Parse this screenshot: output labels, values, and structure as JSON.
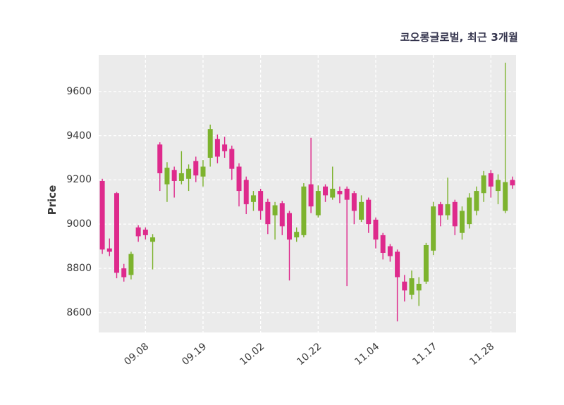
{
  "chart_data": {
    "type": "candlestick",
    "title": "코오롱글로벌, 최근 3개월",
    "ylabel": "Price",
    "ylim": [
      8510,
      9765
    ],
    "yticks": [
      8600,
      8800,
      9000,
      9200,
      9400,
      9600
    ],
    "xticks": [
      {
        "index": 6,
        "label": "09.08"
      },
      {
        "index": 14,
        "label": "09.19"
      },
      {
        "index": 22,
        "label": "10.02"
      },
      {
        "index": 30,
        "label": "10.22"
      },
      {
        "index": 38,
        "label": "11.04"
      },
      {
        "index": 46,
        "label": "11.17"
      },
      {
        "index": 54,
        "label": "11.28"
      }
    ],
    "grid": "on",
    "legend": "none",
    "ohlc_order": [
      "open",
      "high",
      "low",
      "close"
    ],
    "candles": [
      [
        9195,
        9205,
        8865,
        8885
      ],
      [
        8890,
        8935,
        8855,
        8875
      ],
      [
        9140,
        9145,
        8755,
        8780
      ],
      [
        8800,
        8820,
        8740,
        8760
      ],
      [
        8770,
        8875,
        8750,
        8865
      ],
      [
        8985,
        8995,
        8920,
        8945
      ],
      [
        8975,
        8985,
        8930,
        8950
      ],
      [
        8920,
        8955,
        8795,
        8940
      ],
      [
        9360,
        9370,
        9150,
        9230
      ],
      [
        9180,
        9280,
        9100,
        9255
      ],
      [
        9245,
        9260,
        9120,
        9195
      ],
      [
        9195,
        9330,
        9180,
        9230
      ],
      [
        9205,
        9270,
        9150,
        9250
      ],
      [
        9285,
        9305,
        9190,
        9220
      ],
      [
        9215,
        9290,
        9170,
        9260
      ],
      [
        9300,
        9450,
        9260,
        9430
      ],
      [
        9385,
        9405,
        9275,
        9305
      ],
      [
        9360,
        9395,
        9300,
        9330
      ],
      [
        9340,
        9355,
        9200,
        9250
      ],
      [
        9260,
        9275,
        9080,
        9150
      ],
      [
        9200,
        9215,
        9045,
        9090
      ],
      [
        9100,
        9150,
        9060,
        9130
      ],
      [
        9150,
        9160,
        9020,
        9060
      ],
      [
        9100,
        9115,
        8955,
        9000
      ],
      [
        9040,
        9100,
        8930,
        9085
      ],
      [
        9095,
        9105,
        8950,
        8990
      ],
      [
        9050,
        9060,
        8745,
        8930
      ],
      [
        8940,
        8985,
        8920,
        8965
      ],
      [
        8950,
        9185,
        8940,
        9170
      ],
      [
        9180,
        9390,
        9050,
        9080
      ],
      [
        9040,
        9175,
        9030,
        9150
      ],
      [
        9170,
        9180,
        9100,
        9130
      ],
      [
        9120,
        9260,
        9110,
        9160
      ],
      [
        9150,
        9170,
        9095,
        9135
      ],
      [
        9160,
        9170,
        8720,
        9110
      ],
      [
        9140,
        9150,
        9000,
        9060
      ],
      [
        9020,
        9130,
        9010,
        9100
      ],
      [
        9110,
        9120,
        8960,
        9000
      ],
      [
        9020,
        9030,
        8890,
        8930
      ],
      [
        8950,
        8960,
        8840,
        8870
      ],
      [
        8900,
        8910,
        8830,
        8855
      ],
      [
        8875,
        8885,
        8560,
        8760
      ],
      [
        8740,
        8770,
        8650,
        8700
      ],
      [
        8680,
        8790,
        8660,
        8755
      ],
      [
        8700,
        8760,
        8630,
        8730
      ],
      [
        8740,
        8915,
        8730,
        8905
      ],
      [
        8880,
        9100,
        8860,
        9080
      ],
      [
        9090,
        9100,
        8990,
        9040
      ],
      [
        9040,
        9210,
        9020,
        9090
      ],
      [
        9100,
        9110,
        8950,
        8990
      ],
      [
        8960,
        9080,
        8930,
        9060
      ],
      [
        9000,
        9140,
        8980,
        9120
      ],
      [
        9060,
        9170,
        9040,
        9150
      ],
      [
        9140,
        9240,
        9100,
        9220
      ],
      [
        9230,
        9245,
        9120,
        9170
      ],
      [
        9150,
        9225,
        9090,
        9200
      ],
      [
        9060,
        9730,
        9050,
        9190
      ],
      [
        9200,
        9215,
        9160,
        9175
      ]
    ],
    "colors": {
      "up": "#7db32e",
      "down": "#de2a8c",
      "plot_bg": "#ebebeb",
      "grid": "#ffffff",
      "tick_text": "#3b3b3b",
      "title_text": "#33334c"
    }
  }
}
